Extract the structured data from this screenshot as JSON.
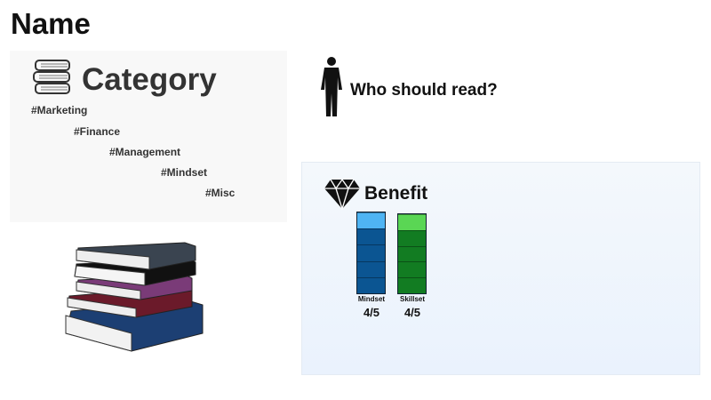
{
  "title": "Name",
  "category": {
    "title": "Category",
    "tags": [
      "#Marketing",
      "#Finance",
      "#Management",
      "#Mindset",
      "#Misc"
    ]
  },
  "audience": {
    "title": "Who should read?"
  },
  "benefit": {
    "title": "Benefit",
    "bars": [
      {
        "label": "Mindset",
        "score": "4/5",
        "value": 4,
        "max": 5,
        "filled_color": "#0b5592",
        "top_color": "#4fb4f3"
      },
      {
        "label": "Skillset",
        "score": "4/5",
        "value": 4,
        "max": 5,
        "filled_color": "#127c22",
        "top_color": "#5ad654"
      }
    ]
  },
  "icons": [
    "books-stack-icon",
    "person-silhouette-icon",
    "diamond-icon",
    "books-illustration"
  ]
}
